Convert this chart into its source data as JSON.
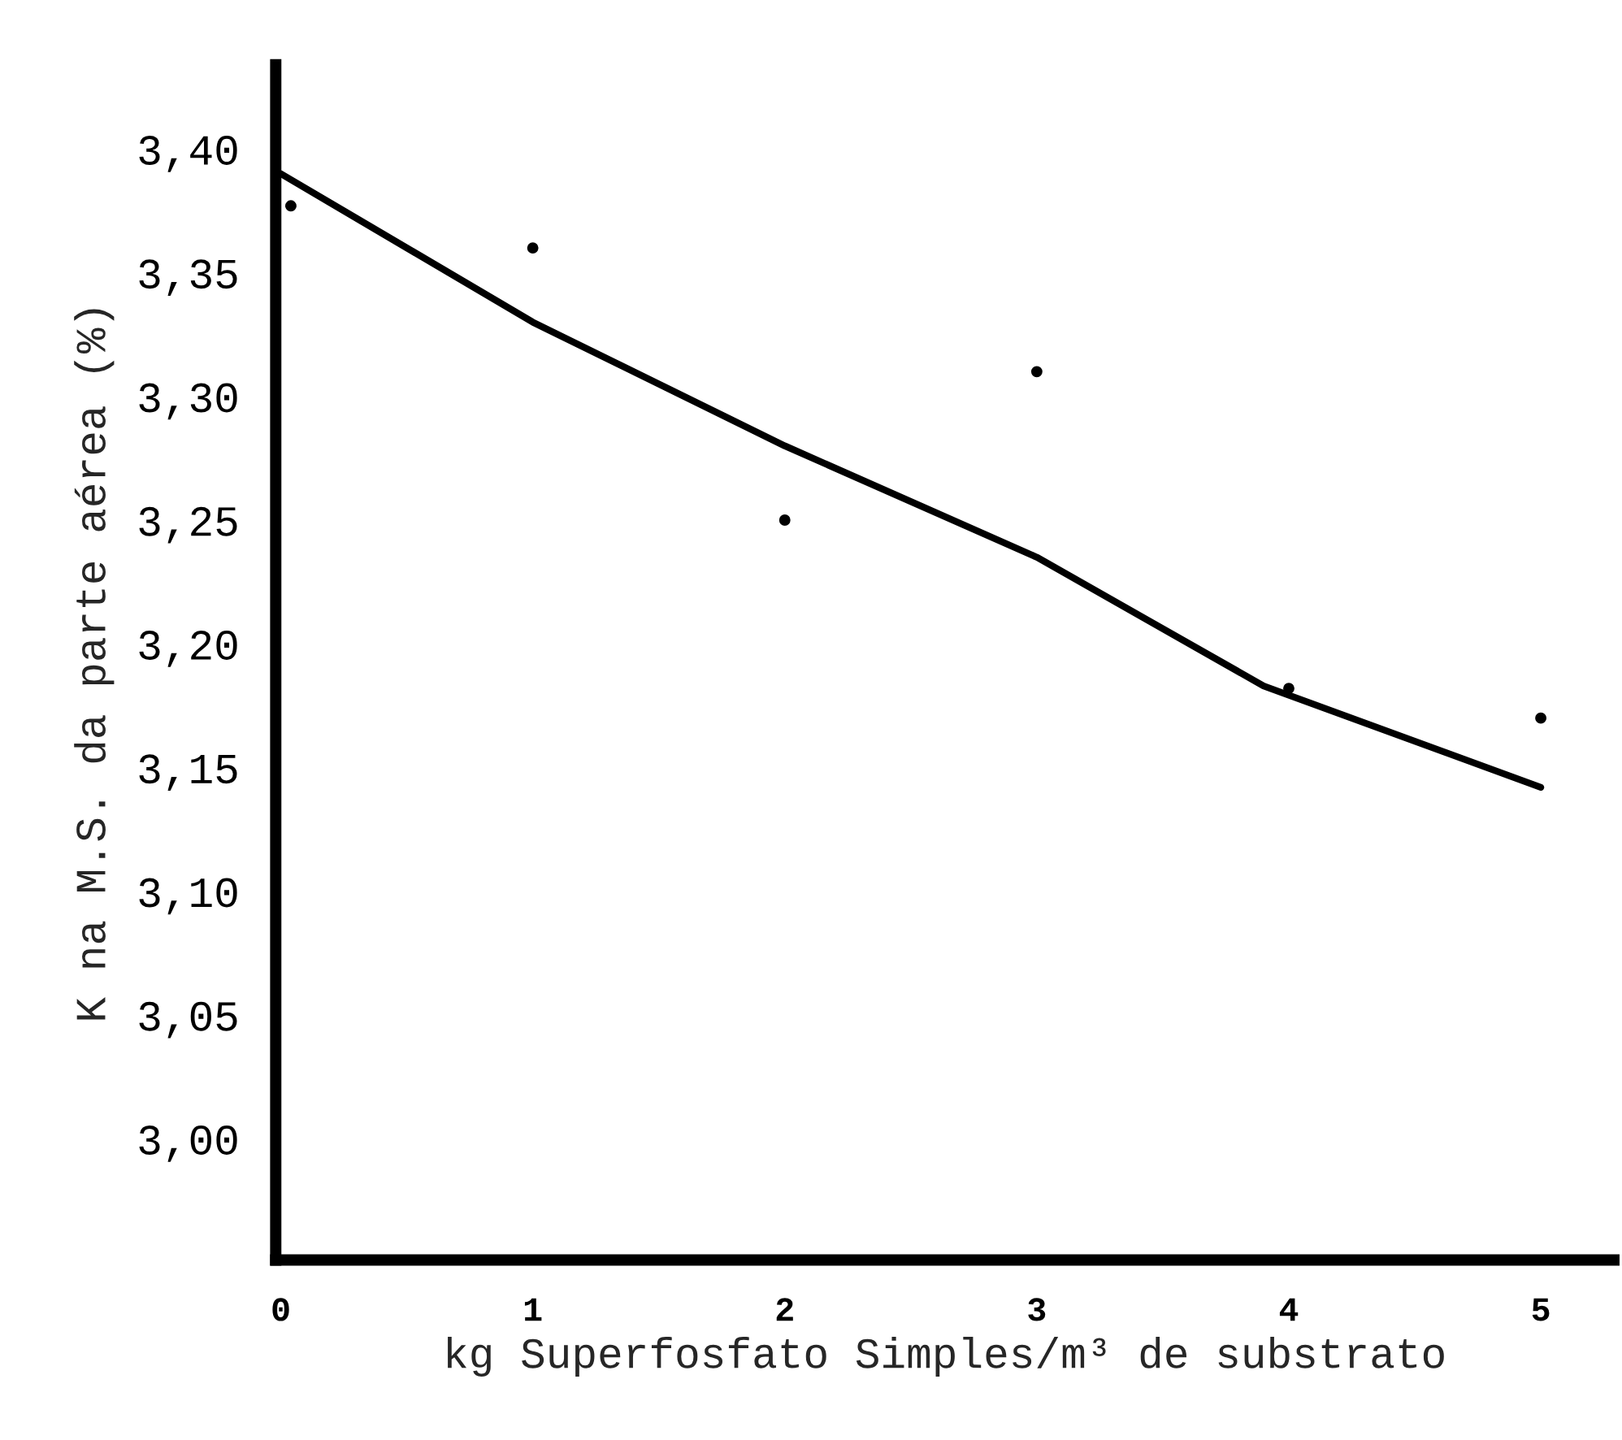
{
  "chart_data": {
    "type": "scatter",
    "xlabel": "kg Superfosfato Simples/m³ de substrato",
    "ylabel": "K na M.S. da parte aérea (%)",
    "xlim": [
      -0.02,
      5.29
    ],
    "ylim": [
      2.951,
      3.434
    ],
    "xticks": [
      0,
      1,
      2,
      3,
      4,
      5
    ],
    "yticks": [
      {
        "value": 3.0,
        "label": "3,00"
      },
      {
        "value": 3.05,
        "label": "3,05"
      },
      {
        "value": 3.1,
        "label": "3,10"
      },
      {
        "value": 3.15,
        "label": "3,15"
      },
      {
        "value": 3.2,
        "label": "3,20"
      },
      {
        "value": 3.25,
        "label": "3,25"
      },
      {
        "value": 3.3,
        "label": "3,30"
      },
      {
        "value": 3.35,
        "label": "3,35"
      },
      {
        "value": 3.4,
        "label": "3,40"
      }
    ],
    "grid": false,
    "legend": false,
    "series": [
      {
        "color": "#000000",
        "marker": "circle",
        "x": [
          0.04,
          1,
          2,
          3,
          4,
          5
        ],
        "values": [
          3.377,
          3.36,
          3.25,
          3.31,
          3.182,
          3.17
        ]
      },
      {
        "type": "line",
        "color": "#000000",
        "line_style": "solid",
        "x": [
          0,
          1,
          2,
          3,
          3.9,
          5
        ],
        "values": [
          3.39,
          3.33,
          3.28,
          3.235,
          3.183,
          3.142
        ]
      }
    ]
  }
}
